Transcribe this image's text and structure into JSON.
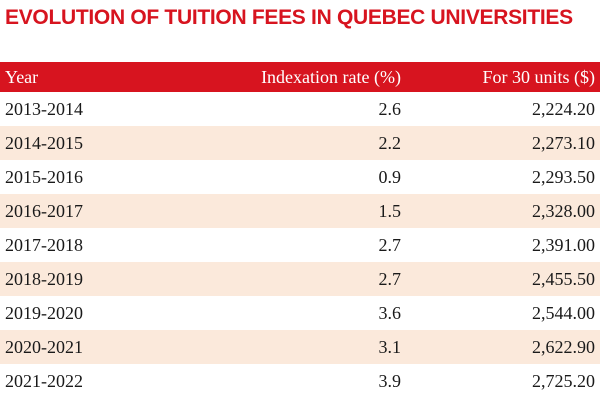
{
  "title": "EVOLUTION OF TUITION FEES IN QUEBEC UNIVERSITIES",
  "colors": {
    "header_bg": "#d7141f",
    "title": "#d7141f",
    "alt_row": "#fbe9db"
  },
  "chart_data": {
    "type": "table",
    "title": "EVOLUTION OF TUITION FEES IN QUEBEC UNIVERSITIES",
    "columns": [
      "Year",
      "Indexation rate (%)",
      "For 30 units ($)"
    ],
    "rows": [
      [
        "2013-2014",
        "2.6",
        "2,224.20"
      ],
      [
        "2014-2015",
        "2.2",
        "2,273.10"
      ],
      [
        "2015-2016",
        "0.9",
        "2,293.50"
      ],
      [
        "2016-2017",
        "1.5",
        "2,328.00"
      ],
      [
        "2017-2018",
        "2.7",
        "2,391.00"
      ],
      [
        "2018-2019",
        "2.7",
        "2,455.50"
      ],
      [
        "2019-2020",
        "3.6",
        "2,544.00"
      ],
      [
        "2020-2021",
        "3.1",
        "2,622.90"
      ],
      [
        "2021-2022",
        "3.9",
        "2,725.20"
      ]
    ]
  }
}
